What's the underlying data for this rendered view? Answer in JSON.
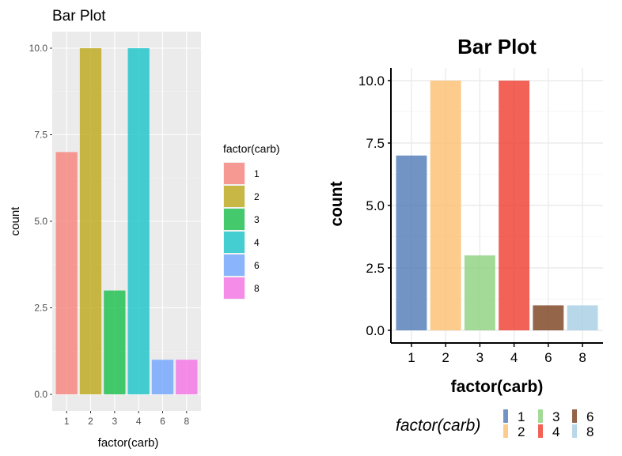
{
  "chart_data": [
    {
      "type": "bar",
      "title": "Bar Plot",
      "xlabel": "factor(carb)",
      "ylabel": "count",
      "categories": [
        "1",
        "2",
        "3",
        "4",
        "6",
        "8"
      ],
      "values": [
        7,
        10,
        3,
        10,
        1,
        1
      ],
      "ylim": [
        0,
        10.5
      ],
      "yticks": [
        "0.0",
        "2.5",
        "5.0",
        "7.5",
        "10.0"
      ],
      "ytick_values": [
        0,
        2.5,
        5,
        7.5,
        10
      ],
      "grid": true,
      "legend": {
        "title": "factor(carb)",
        "placement": "right",
        "entries": [
          "1",
          "2",
          "3",
          "4",
          "6",
          "8"
        ]
      },
      "colors": [
        "#f8766d",
        "#b79f00",
        "#00ba38",
        "#00bfc4",
        "#619cff",
        "#f564e3"
      ],
      "panel_bg": "#ebebeb"
    },
    {
      "type": "bar",
      "title": "Bar Plot",
      "xlabel": "factor(carb)",
      "ylabel": "count",
      "categories": [
        "1",
        "2",
        "3",
        "4",
        "6",
        "8"
      ],
      "values": [
        7,
        10,
        3,
        10,
        1,
        1
      ],
      "ylim": [
        0,
        10.5
      ],
      "yticks": [
        "0.0",
        "2.5",
        "5.0",
        "7.5",
        "10.0"
      ],
      "ytick_values": [
        0,
        2.5,
        5,
        7.5,
        10
      ],
      "grid": true,
      "legend": {
        "title": "factor(carb)",
        "placement": "bottom",
        "entries": [
          "1",
          "2",
          "3",
          "4",
          "6",
          "8"
        ]
      },
      "colors": [
        "#4e79b7",
        "#fdbf6f",
        "#8cd17d",
        "#ef3b2c",
        "#7b3f1d",
        "#a6cee3"
      ],
      "panel_bg": "#ffffff"
    }
  ]
}
